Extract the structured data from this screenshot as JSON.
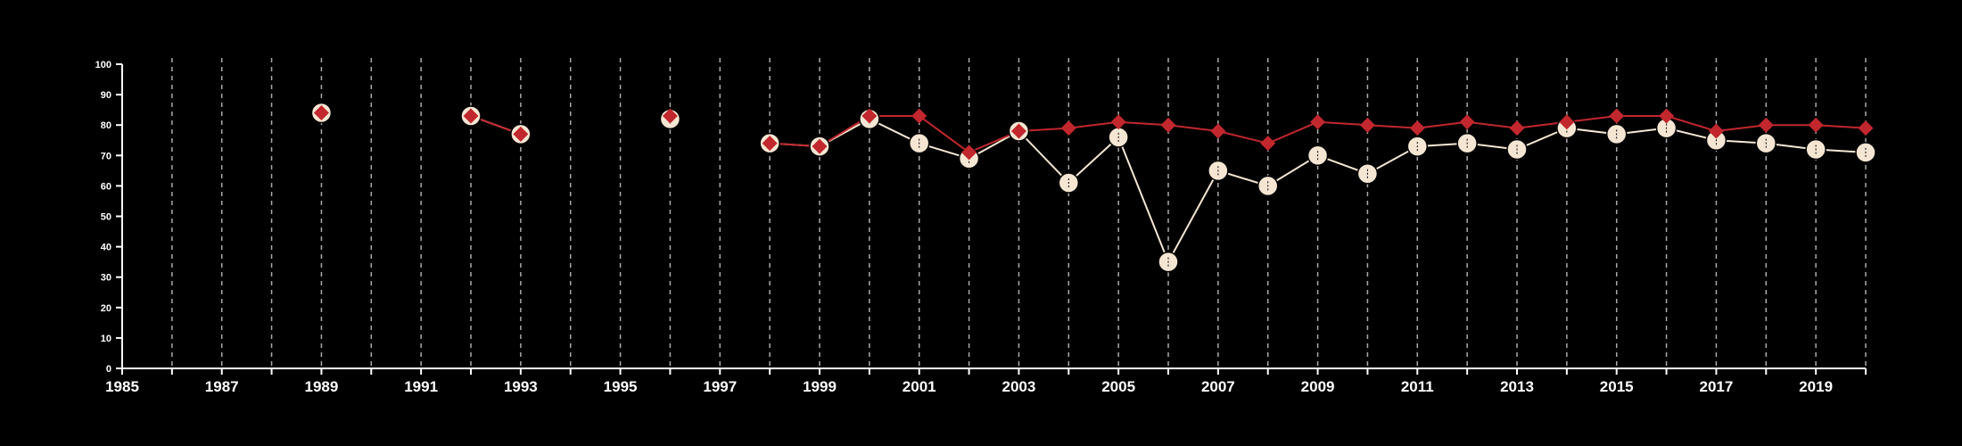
{
  "chart_data": {
    "type": "line",
    "title": "",
    "xlabel": "",
    "ylabel": "",
    "xlim": [
      1985,
      2020
    ],
    "ylim": [
      0,
      100
    ],
    "x_ticks": [
      "1985",
      "1987",
      "1989",
      "1991",
      "1993",
      "1995",
      "1997",
      "1999",
      "2001",
      "2003",
      "2005",
      "2007",
      "2009",
      "2011",
      "2013",
      "2015",
      "2017",
      "2019"
    ],
    "y_ticks": [
      "0",
      "10",
      "20",
      "30",
      "40",
      "50",
      "60",
      "70",
      "80",
      "90",
      "100"
    ],
    "grid": "vertical-dashed",
    "legend": "none",
    "background": "#000000",
    "series": [
      {
        "color": "#f5e6d3",
        "marker": "circle",
        "points": [
          {
            "x": 1989,
            "y": 84
          },
          {
            "x": 1992,
            "y": 83
          },
          {
            "x": 1993,
            "y": 77
          },
          {
            "x": 1996,
            "y": 82
          },
          {
            "x": 1998,
            "y": 74
          },
          {
            "x": 1999,
            "y": 73
          },
          {
            "x": 2000,
            "y": 82
          },
          {
            "x": 2001,
            "y": 74
          },
          {
            "x": 2002,
            "y": 69
          },
          {
            "x": 2003,
            "y": 78
          },
          {
            "x": 2004,
            "y": 61
          },
          {
            "x": 2005,
            "y": 76
          },
          {
            "x": 2006,
            "y": 35
          },
          {
            "x": 2007,
            "y": 65
          },
          {
            "x": 2008,
            "y": 60
          },
          {
            "x": 2009,
            "y": 70
          },
          {
            "x": 2010,
            "y": 64
          },
          {
            "x": 2011,
            "y": 73
          },
          {
            "x": 2012,
            "y": 74
          },
          {
            "x": 2013,
            "y": 72
          },
          {
            "x": 2014,
            "y": 79
          },
          {
            "x": 2015,
            "y": 77
          },
          {
            "x": 2016,
            "y": 79
          },
          {
            "x": 2017,
            "y": 75
          },
          {
            "x": 2018,
            "y": 74
          },
          {
            "x": 2019,
            "y": 72
          },
          {
            "x": 2020,
            "y": 71
          }
        ]
      },
      {
        "color": "#c1272d",
        "marker": "diamond",
        "points": [
          {
            "x": 1989,
            "y": 84
          },
          {
            "x": 1992,
            "y": 83
          },
          {
            "x": 1993,
            "y": 77
          },
          {
            "x": 1996,
            "y": 83
          },
          {
            "x": 1998,
            "y": 74
          },
          {
            "x": 1999,
            "y": 73
          },
          {
            "x": 2000,
            "y": 83
          },
          {
            "x": 2001,
            "y": 83
          },
          {
            "x": 2002,
            "y": 71
          },
          {
            "x": 2003,
            "y": 78
          },
          {
            "x": 2004,
            "y": 79
          },
          {
            "x": 2005,
            "y": 81
          },
          {
            "x": 2006,
            "y": 80
          },
          {
            "x": 2007,
            "y": 78
          },
          {
            "x": 2008,
            "y": 74
          },
          {
            "x": 2009,
            "y": 81
          },
          {
            "x": 2010,
            "y": 80
          },
          {
            "x": 2011,
            "y": 79
          },
          {
            "x": 2012,
            "y": 81
          },
          {
            "x": 2013,
            "y": 79
          },
          {
            "x": 2014,
            "y": 81
          },
          {
            "x": 2015,
            "y": 83
          },
          {
            "x": 2016,
            "y": 83
          },
          {
            "x": 2017,
            "y": 78
          },
          {
            "x": 2018,
            "y": 80
          },
          {
            "x": 2019,
            "y": 80
          },
          {
            "x": 2020,
            "y": 79
          }
        ]
      }
    ]
  }
}
